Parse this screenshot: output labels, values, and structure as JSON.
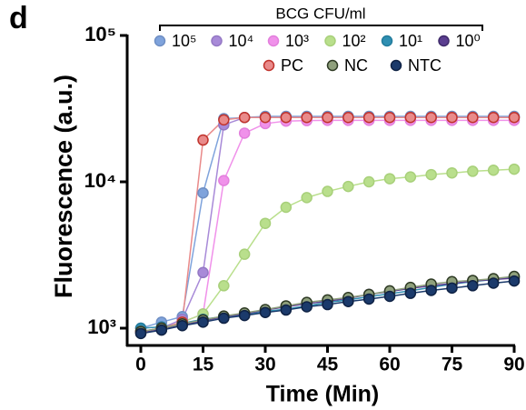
{
  "panel_label": "d",
  "chart_data": {
    "type": "line",
    "log_y": true,
    "legend": "top",
    "legend_title": "BCG CFU/ml",
    "ylabel": "Fluorescence (a.u.)",
    "xlabel": "Time (Min)",
    "x": [
      0,
      5,
      10,
      15,
      20,
      25,
      30,
      35,
      40,
      45,
      50,
      55,
      60,
      65,
      70,
      75,
      80,
      85,
      90
    ],
    "xlim": [
      0,
      90
    ],
    "xticks": [
      0,
      15,
      30,
      45,
      60,
      75,
      90
    ],
    "ylim": [
      1000,
      100000
    ],
    "yticks": [
      {
        "value": 1000,
        "label": "10³"
      },
      {
        "value": 10000,
        "label": "10⁴"
      },
      {
        "value": 100000,
        "label": "10⁵"
      }
    ],
    "series": [
      {
        "name": "10⁵",
        "color": "#7fa3dc",
        "edge": "#6f8fc4",
        "values": [
          1000,
          1100,
          1200,
          8400,
          27000,
          27500,
          28000,
          28000,
          28000,
          28000,
          28000,
          28000,
          28000,
          28000,
          28000,
          28000,
          28000,
          28000,
          28000
        ]
      },
      {
        "name": "10⁴",
        "color": "#a88ad8",
        "edge": "#9478c4",
        "values": [
          950,
          1000,
          1150,
          2400,
          24500,
          27500,
          27500,
          27500,
          27500,
          27500,
          27500,
          27500,
          27500,
          27500,
          27500,
          27500,
          27500,
          27500,
          27500
        ]
      },
      {
        "name": "10³",
        "color": "#f091ea",
        "edge": "#e27fdc",
        "values": [
          950,
          1000,
          1100,
          1250,
          10200,
          21500,
          25000,
          26000,
          26200,
          26300,
          26300,
          26300,
          26300,
          26300,
          26300,
          26300,
          26300,
          26300,
          26300
        ]
      },
      {
        "name": "10²",
        "color": "#b9df8c",
        "edge": "#a8d07a",
        "values": [
          950,
          1000,
          1100,
          1250,
          1950,
          3200,
          5200,
          6700,
          7800,
          8600,
          9300,
          10000,
          10500,
          10800,
          11200,
          11500,
          11800,
          12000,
          12200
        ]
      },
      {
        "name": "10¹",
        "color": "#2f8fb2",
        "edge": "#237c9c",
        "values": [
          1000,
          1020,
          1080,
          1150,
          1200,
          1230,
          1300,
          1350,
          1420,
          1500,
          1560,
          1640,
          1720,
          1800,
          1900,
          2000,
          2080,
          2150,
          2250
        ]
      },
      {
        "name": "10⁰",
        "color": "#5b3e90",
        "edge": "#3f2a6a",
        "values": [
          930,
          980,
          1050,
          1120,
          1200,
          1250,
          1330,
          1400,
          1470,
          1530,
          1600,
          1700,
          1780,
          1870,
          1950,
          2020,
          2100,
          2150,
          2200
        ]
      },
      {
        "name": "PC",
        "color": "#e98a8a",
        "edge": "#c0332c",
        "values": [
          950,
          1000,
          1100,
          19300,
          26500,
          27500,
          27500,
          27500,
          27500,
          27500,
          27500,
          27500,
          27500,
          27500,
          27500,
          27500,
          27500,
          27500,
          27500
        ]
      },
      {
        "name": "NC",
        "color": "#8fa07c",
        "edge": "#2e3a24",
        "values": [
          950,
          1000,
          1070,
          1140,
          1210,
          1270,
          1340,
          1420,
          1500,
          1560,
          1620,
          1700,
          1800,
          1900,
          2000,
          2080,
          2120,
          2180,
          2260
        ]
      },
      {
        "name": "NTC",
        "color": "#1b3a6b",
        "edge": "#0f2244",
        "values": [
          920,
          970,
          1040,
          1100,
          1170,
          1220,
          1280,
          1330,
          1400,
          1450,
          1520,
          1580,
          1650,
          1730,
          1810,
          1880,
          1950,
          2030,
          2100
        ]
      }
    ]
  }
}
